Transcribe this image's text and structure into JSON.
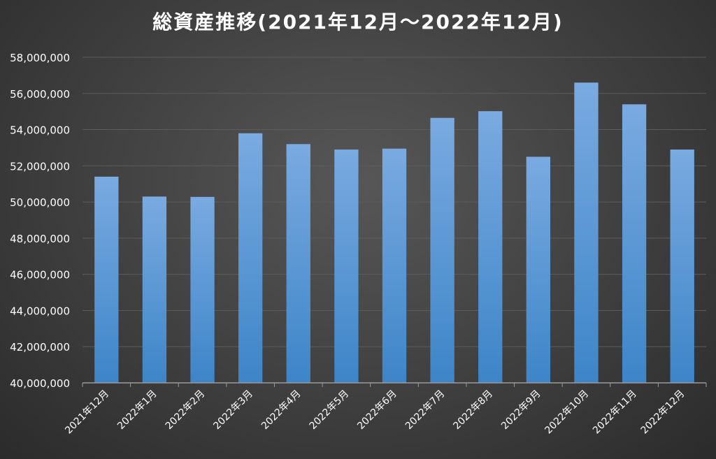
{
  "chart_data": {
    "type": "bar",
    "title": "総資産推移(2021年12月～2022年12月)",
    "categories": [
      "2021年12月",
      "2022年1月",
      "2022年2月",
      "2022年3月",
      "2022年4月",
      "2022年5月",
      "2022年6月",
      "2022年7月",
      "2022年8月",
      "2022年9月",
      "2022年10月",
      "2022年11月",
      "2022年12月"
    ],
    "values": [
      51400000,
      50300000,
      50280000,
      53800000,
      53200000,
      52900000,
      52950000,
      54650000,
      55020000,
      52500000,
      56600000,
      55400000,
      52900000
    ],
    "ylim": [
      40000000,
      58000000
    ],
    "yticks": [
      40000000,
      42000000,
      44000000,
      46000000,
      48000000,
      50000000,
      52000000,
      54000000,
      56000000,
      58000000
    ],
    "ytick_labels": [
      "40,000,000",
      "42,000,000",
      "44,000,000",
      "46,000,000",
      "48,000,000",
      "50,000,000",
      "52,000,000",
      "54,000,000",
      "56,000,000",
      "58,000,000"
    ],
    "xlabel": "",
    "ylabel": "",
    "grid": true,
    "legend": "none",
    "colors": {
      "bar_top": "#7aaae0",
      "bar_bottom": "#3d85c8",
      "grid": "#5c5c5c",
      "axis": "#9a9a9a",
      "text": "#ffffff"
    }
  }
}
